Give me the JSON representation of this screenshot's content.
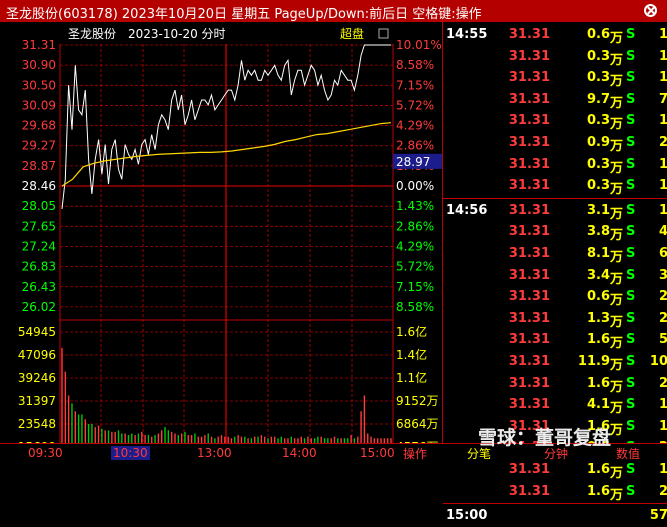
{
  "window": {
    "title": "圣龙股份(603178) 2023年10月20日 星期五 PageUp/Down:前后日 空格键:操作"
  },
  "chart_header": {
    "stock_name": "圣龙股份",
    "date_label": "2023-10-20 分时",
    "badge": "超盘"
  },
  "chart_data": {
    "type": "line",
    "price_axis": [
      "31.31",
      "30.90",
      "30.50",
      "30.09",
      "29.68",
      "29.27",
      "28.87",
      "28.46",
      "28.05",
      "27.65",
      "27.24",
      "26.83",
      "26.43",
      "26.02"
    ],
    "pct_axis": [
      "10.01%",
      "8.58%",
      "7.15%",
      "5.72%",
      "4.29%",
      "2.86%",
      "1.43%",
      "0.00%",
      "1.43%",
      "2.86%",
      "4.29%",
      "5.72%",
      "7.15%",
      "8.58%"
    ],
    "volume_axis_left": [
      "54945",
      "47096",
      "39246",
      "31397",
      "23548",
      "15699",
      "7849"
    ],
    "volume_axis_right": [
      "1.6亿",
      "1.4亿",
      "1.1亿",
      "9152万",
      "6864万",
      "4576万",
      "2288万"
    ],
    "x_labels": [
      "09:30",
      "10:30",
      "13:00",
      "14:00",
      "15:00"
    ],
    "x_selected": "10:30",
    "prev_close": 28.46,
    "cursor_price_label": "28.97",
    "price_series": [
      28.0,
      28.6,
      30.5,
      29.6,
      30.9,
      30.0,
      29.9,
      30.4,
      29.0,
      28.3,
      29.0,
      29.4,
      28.7,
      29.3,
      28.5,
      29.2,
      29.4,
      28.8,
      28.6,
      29.3,
      29.1,
      29.0,
      29.2,
      28.9,
      29.3,
      29.4,
      29.1,
      29.5,
      29.2,
      29.7,
      29.9,
      29.8,
      29.6,
      30.2,
      30.4,
      30.0,
      30.3,
      29.7,
      29.9,
      30.2,
      29.8,
      30.0,
      30.2,
      30.2,
      30.1,
      30.3,
      30.0,
      30.1,
      30.2,
      30.3,
      30.4,
      30.4,
      30.2,
      30.5,
      31.0,
      30.6,
      30.8,
      30.7,
      30.8,
      30.6,
      30.6,
      30.8,
      30.7,
      30.8,
      30.9,
      30.7,
      30.6,
      30.9,
      31.0,
      30.3,
      30.6,
      30.8,
      30.8,
      30.5,
      30.7,
      30.9,
      30.8,
      30.5,
      30.7,
      30.4,
      30.2,
      30.3,
      30.6,
      30.5,
      30.8,
      30.7,
      30.6,
      30.6,
      30.4,
      30.7,
      31.1,
      31.31,
      31.31,
      31.31,
      31.31,
      31.31,
      31.31,
      31.31,
      31.31,
      31.31
    ],
    "avg_series": [
      28.46,
      28.6,
      28.85,
      28.92,
      28.97,
      29.0,
      29.03,
      29.06,
      29.08,
      29.1,
      29.11,
      29.12,
      29.13,
      29.14,
      29.14,
      29.15,
      29.17,
      29.2,
      29.23,
      29.26,
      29.3,
      29.36,
      29.4,
      29.45,
      29.5,
      29.52,
      29.56,
      29.6,
      29.64,
      29.68,
      29.72,
      29.74
    ],
    "volume_series": [
      60,
      45,
      30,
      25,
      20,
      18,
      18,
      15,
      12,
      12,
      10,
      11,
      9,
      8,
      8,
      7,
      7,
      8,
      6,
      6,
      5,
      6,
      5,
      6,
      7,
      5,
      5,
      4,
      5,
      6,
      8,
      10,
      8,
      7,
      6,
      5,
      6,
      7,
      5,
      5,
      6,
      4,
      4,
      5,
      6,
      4,
      3,
      4,
      5,
      4,
      4,
      3,
      4,
      5,
      4,
      4,
      3,
      3,
      4,
      4,
      5,
      4,
      3,
      4,
      4,
      3,
      4,
      3,
      3,
      4,
      3,
      3,
      4,
      3,
      4,
      3,
      3,
      4,
      4,
      3,
      3,
      3,
      4,
      3,
      3,
      3,
      3,
      5,
      3,
      4,
      20,
      30,
      6,
      4,
      3,
      3,
      3,
      3,
      3,
      3
    ]
  },
  "tick_panel": {
    "groups": [
      {
        "time": "14:55",
        "rows": [
          {
            "price": "31.31",
            "vol": "0.6",
            "side": "S",
            "num": "1"
          },
          {
            "price": "31.31",
            "vol": "0.3",
            "side": "S",
            "num": "1"
          },
          {
            "price": "31.31",
            "vol": "0.3",
            "side": "S",
            "num": "1"
          },
          {
            "price": "31.31",
            "vol": "9.7",
            "side": "S",
            "num": "7"
          },
          {
            "price": "31.31",
            "vol": "0.3",
            "side": "S",
            "num": "1"
          },
          {
            "price": "31.31",
            "vol": "0.9",
            "side": "S",
            "num": "2"
          },
          {
            "price": "31.31",
            "vol": "0.3",
            "side": "S",
            "num": "1"
          },
          {
            "price": "31.31",
            "vol": "0.3",
            "side": "S",
            "num": "1"
          }
        ]
      },
      {
        "time": "14:56",
        "rows": [
          {
            "price": "31.31",
            "vol": "3.1",
            "side": "S",
            "num": "1"
          },
          {
            "price": "31.31",
            "vol": "3.8",
            "side": "S",
            "num": "4"
          },
          {
            "price": "31.31",
            "vol": "8.1",
            "side": "S",
            "num": "6"
          },
          {
            "price": "31.31",
            "vol": "3.4",
            "side": "S",
            "num": "3"
          },
          {
            "price": "31.31",
            "vol": "0.6",
            "side": "S",
            "num": "2"
          },
          {
            "price": "31.31",
            "vol": "1.3",
            "side": "S",
            "num": "2"
          },
          {
            "price": "31.31",
            "vol": "1.6",
            "side": "S",
            "num": "5"
          },
          {
            "price": "31.31",
            "vol": "11.9",
            "side": "S",
            "num": "10"
          },
          {
            "price": "31.31",
            "vol": "1.6",
            "side": "S",
            "num": "2"
          },
          {
            "price": "31.31",
            "vol": "4.1",
            "side": "S",
            "num": "1"
          },
          {
            "price": "31.31",
            "vol": "1.6",
            "side": "S",
            "num": "1"
          },
          {
            "price": "31.31",
            "vol": "0.6",
            "side": "S",
            "num": "2"
          },
          {
            "price": "31.31",
            "vol": "1.6",
            "side": "S",
            "num": "1"
          },
          {
            "price": "31.31",
            "vol": "1.6",
            "side": "S",
            "num": "2"
          }
        ]
      },
      {
        "time": "15:00",
        "rows": [
          {
            "price": "",
            "vol": "",
            "side": "",
            "num": "57"
          }
        ]
      }
    ],
    "unit": "万"
  },
  "bottom_tabs": [
    "操作",
    "分笔",
    "分钟",
    "数值"
  ],
  "active_tab": "分笔",
  "watermark": "雪球：董哥复盘"
}
